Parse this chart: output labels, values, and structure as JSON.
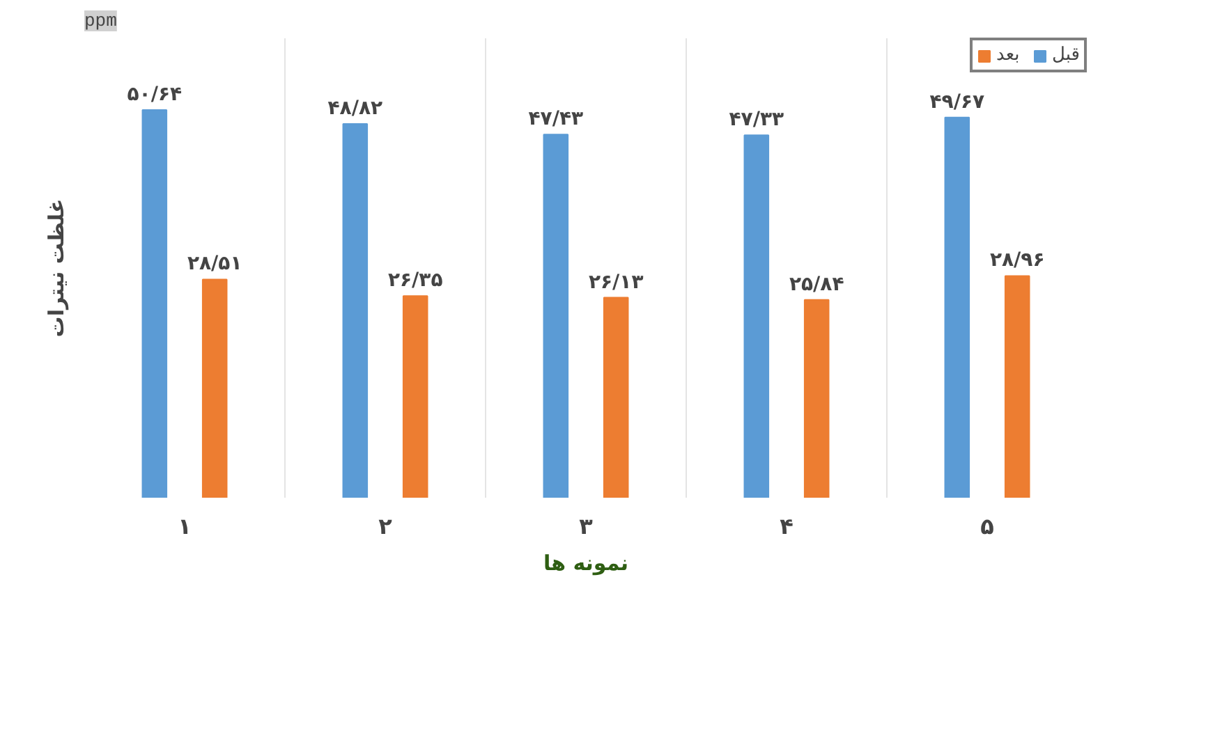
{
  "chart_data": {
    "type": "bar",
    "categories": [
      "۱",
      "۲",
      "۳",
      "۴",
      "۵"
    ],
    "series": [
      {
        "name": "قبل",
        "color": "#5b9bd5",
        "values": [
          50.64,
          48.82,
          47.43,
          47.33,
          49.67
        ],
        "value_labels": [
          "۵۰/۶۴",
          "۴۸/۸۲",
          "۴۷/۴۳",
          "۴۷/۳۳",
          "۴۹/۶۷"
        ]
      },
      {
        "name": "بعد",
        "color": "#ed7d31",
        "values": [
          28.51,
          26.35,
          26.13,
          25.84,
          28.96
        ],
        "value_labels": [
          "۲۸/۵۱",
          "۲۶/۳۵",
          "۲۶/۱۳",
          "۲۵/۸۴",
          "۲۸/۹۶"
        ]
      }
    ],
    "xlabel": "نمونه ها",
    "ylabel": "غلظت نیترات",
    "annotations": [
      "ppm"
    ],
    "ylim": [
      0,
      60
    ],
    "tick_labels": "x",
    "grid": "x",
    "legend": "top right"
  }
}
